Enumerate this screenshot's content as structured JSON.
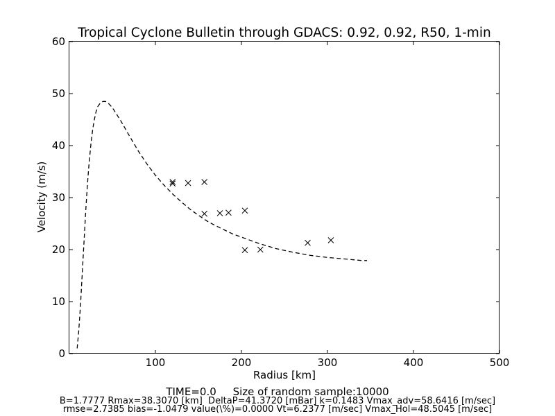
{
  "chart_data": {
    "type": "scatter",
    "title": "Tropical Cyclone Bulletin through GDACS: 0.92, 0.92, R50, 1-min",
    "xlabel": "Radius [km]",
    "ylabel": "Velocity (m/s)",
    "xlim": [
      0,
      500
    ],
    "ylim": [
      0,
      60
    ],
    "xticks": [
      "100",
      "200",
      "300",
      "400",
      "500"
    ],
    "yticks": [
      "0",
      "10",
      "20",
      "30",
      "40",
      "50",
      "60"
    ],
    "grid": false,
    "legend": "none",
    "series": [
      {
        "kind": "dashed-line",
        "color": "#000000",
        "x": [
          9,
          11,
          13,
          15,
          17,
          19,
          21,
          23,
          25,
          27,
          29,
          31,
          33,
          36,
          39,
          42,
          45,
          50,
          55,
          60,
          70,
          80,
          90,
          100,
          110,
          120,
          130,
          140,
          150,
          160,
          170,
          180,
          190,
          200,
          220,
          240,
          260,
          280,
          300,
          320,
          340,
          346
        ],
        "y": [
          1.0,
          4.5,
          9.5,
          15.5,
          21.5,
          27.5,
          32.5,
          36.8,
          40.2,
          43.0,
          45.0,
          46.5,
          47.5,
          48.2,
          48.5,
          48.5,
          48.2,
          47.3,
          46.0,
          44.7,
          41.8,
          39.0,
          36.5,
          34.3,
          32.4,
          30.7,
          29.2,
          27.8,
          26.6,
          25.5,
          24.6,
          23.8,
          23.0,
          22.4,
          21.2,
          20.2,
          19.5,
          18.9,
          18.5,
          18.2,
          17.9,
          17.9
        ]
      },
      {
        "kind": "x-markers",
        "color": "#000000",
        "x": [
          120,
          120,
          138,
          157,
          157,
          175,
          185,
          204,
          204,
          222,
          277,
          304
        ],
        "y": [
          33.0,
          32.7,
          32.8,
          33.0,
          26.9,
          27.0,
          27.1,
          27.5,
          19.9,
          20.0,
          21.3,
          21.8
        ]
      }
    ]
  },
  "footer": {
    "line1": "TIME=0.0     Size of random sample:10000",
    "line2": "B=1.7777 Rmax=38.3070 [km]  DeltaP=41.3720 [mBar] k=0.1483 Vmax_adv=58.6416 [m/sec]",
    "line3": "rmse=2.7385 bias=-1.0479 value(\\%)=0.0000 Vt=6.2377 [m/sec] Vmax_Hol=48.5045 [m/sec]"
  }
}
